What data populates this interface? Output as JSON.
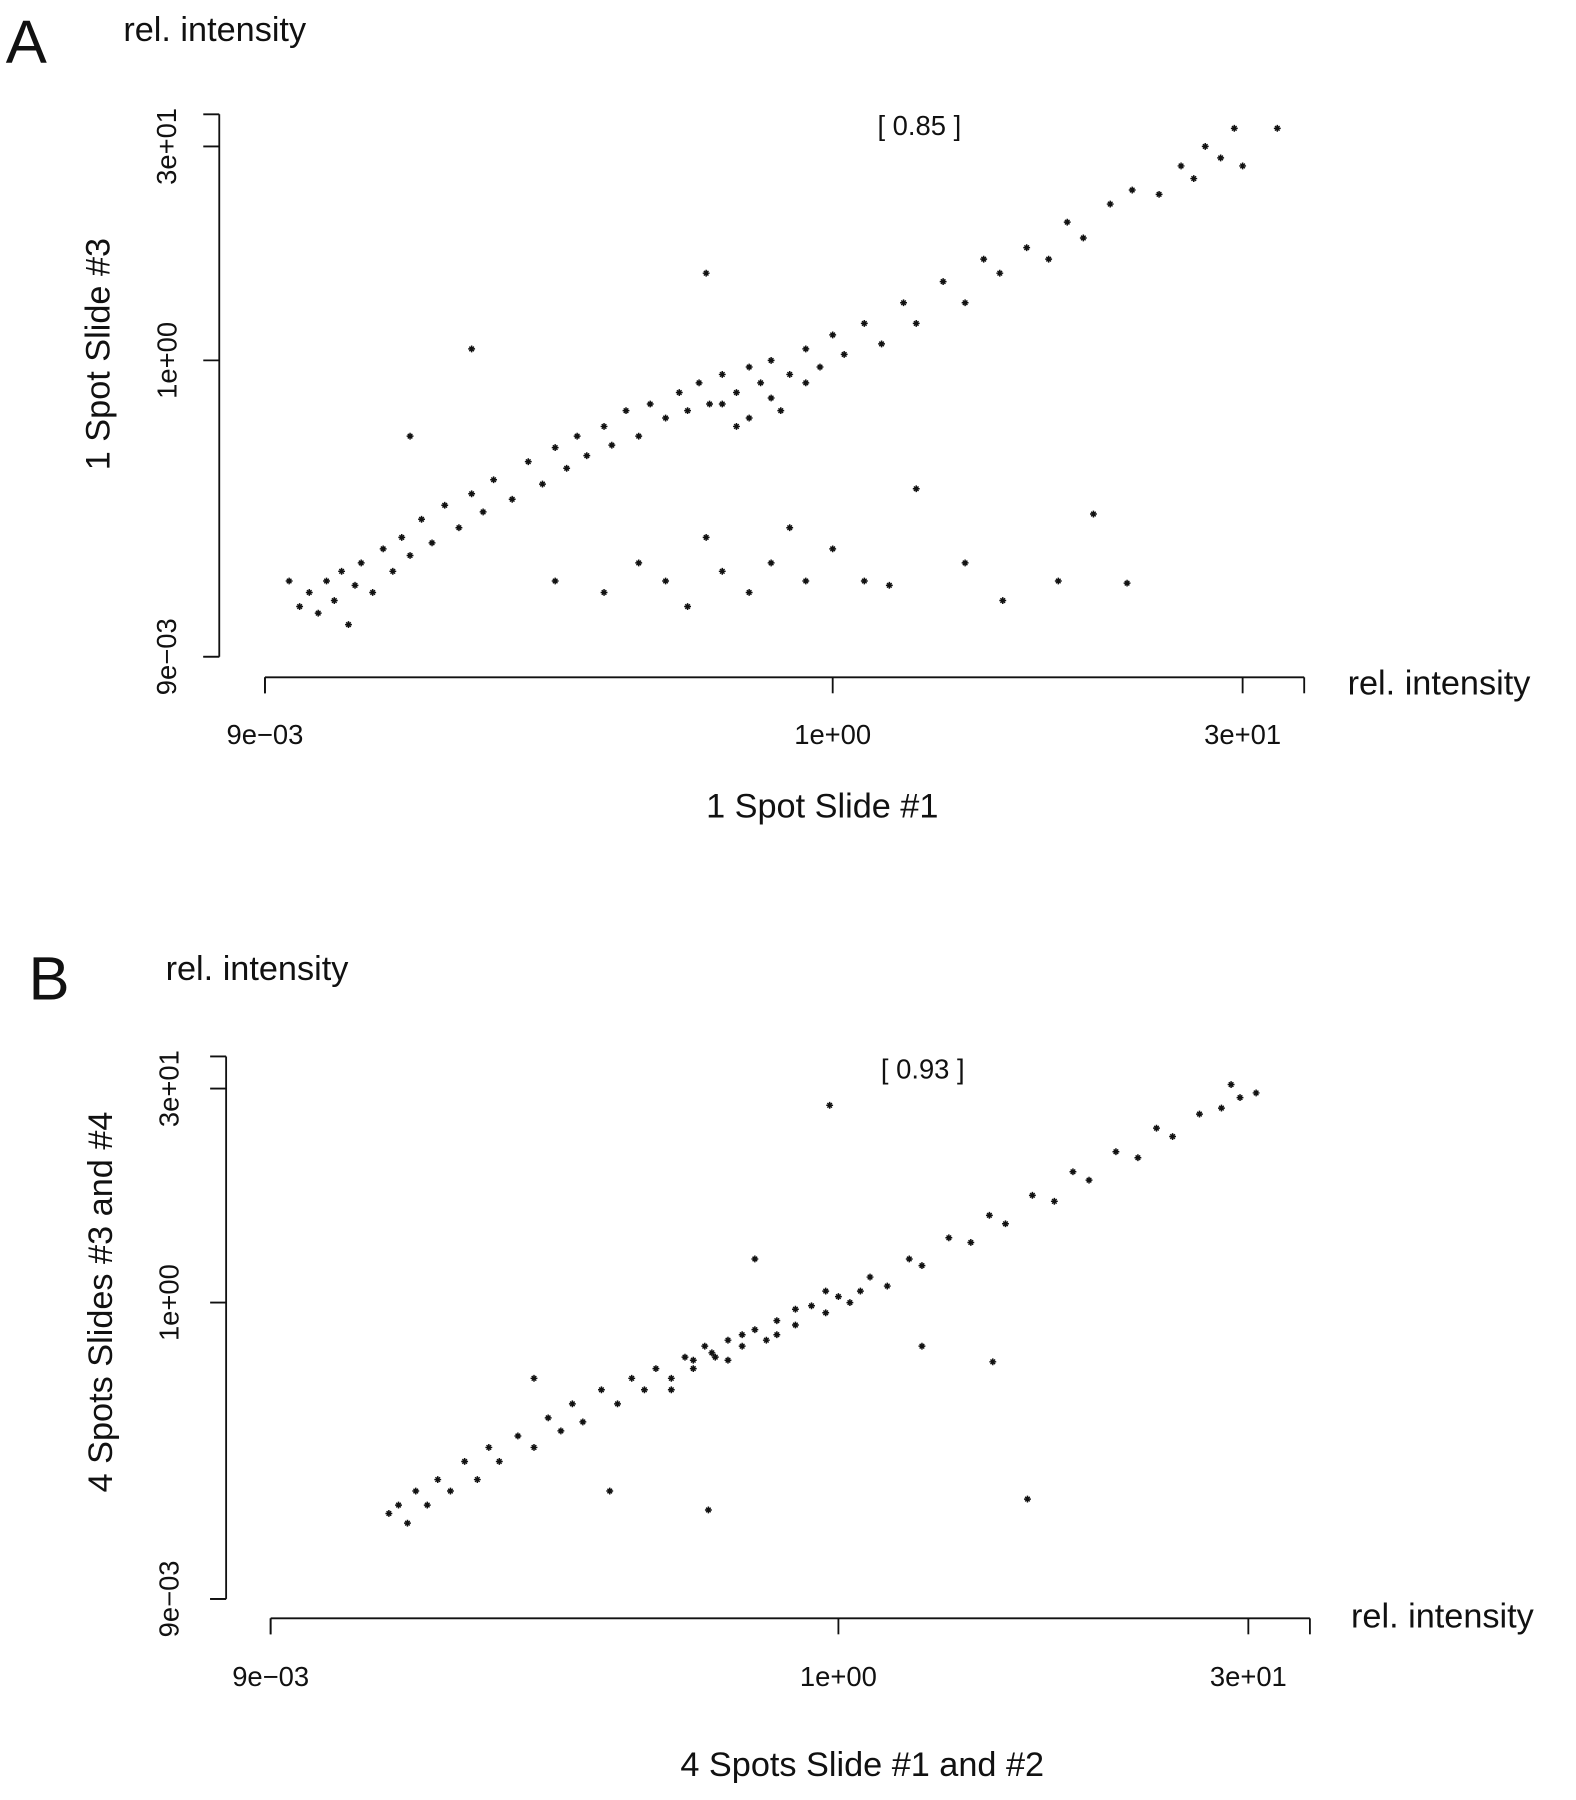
{
  "chart_data": [
    {
      "type": "scatter",
      "panel": "A",
      "x_label": "1 Spot Slide #1",
      "y_label": "1 Spot Slide #3",
      "x_axis_unit": "rel. intensity",
      "y_axis_unit": "rel. intensity",
      "annotation": "[ 0.85 ]",
      "log_scale": true,
      "color": "#111111",
      "xlim": [
        0.009,
        50
      ],
      "ylim": [
        0.009,
        50
      ],
      "xticks": [
        {
          "value": 0.009,
          "label": "9e−03"
        },
        {
          "value": 1,
          "label": "1e+00"
        },
        {
          "value": 30,
          "label": "3e+01"
        }
      ],
      "yticks": [
        {
          "value": 0.009,
          "label": "9e−03"
        },
        {
          "value": 1,
          "label": "1e+00"
        },
        {
          "value": 30,
          "label": "3e+01"
        }
      ],
      "x": [
        0.011,
        0.012,
        0.013,
        0.014,
        0.015,
        0.016,
        0.017,
        0.018,
        0.019,
        0.02,
        0.022,
        0.024,
        0.026,
        0.028,
        0.03,
        0.033,
        0.036,
        0.04,
        0.045,
        0.05,
        0.055,
        0.06,
        0.07,
        0.08,
        0.09,
        0.1,
        0.11,
        0.12,
        0.13,
        0.15,
        0.16,
        0.18,
        0.2,
        0.22,
        0.25,
        0.28,
        0.3,
        0.33,
        0.36,
        0.4,
        0.45,
        0.5,
        0.55,
        0.6,
        0.7,
        0.8,
        0.9,
        1.0,
        1.1,
        1.3,
        1.5,
        1.8,
        2,
        2.5,
        3,
        3.5,
        4,
        5,
        6,
        7,
        8,
        10,
        12,
        15,
        18,
        20,
        25,
        30,
        22,
        28,
        0.1,
        0.15,
        0.2,
        0.25,
        0.3,
        0.4,
        0.5,
        0.6,
        0.8,
        1.0,
        1.3,
        1.6,
        0.35,
        0.7,
        4.1,
        8.7,
        11.5,
        6.5,
        3,
        0.05,
        0.03,
        0.35,
        2.0,
        40,
        0.5,
        0.6,
        0.45,
        0.8,
        0.65,
        0.4
      ],
      "values": [
        0.03,
        0.02,
        0.025,
        0.018,
        0.03,
        0.022,
        0.035,
        0.015,
        0.028,
        0.04,
        0.025,
        0.05,
        0.035,
        0.06,
        0.045,
        0.08,
        0.055,
        0.1,
        0.07,
        0.12,
        0.09,
        0.15,
        0.11,
        0.2,
        0.14,
        0.25,
        0.18,
        0.3,
        0.22,
        0.35,
        0.26,
        0.45,
        0.3,
        0.5,
        0.4,
        0.6,
        0.45,
        0.7,
        0.5,
        0.8,
        0.6,
        0.9,
        0.7,
        1.0,
        0.8,
        1.2,
        0.9,
        1.5,
        1.1,
        1.8,
        1.3,
        2.5,
        1.8,
        3.5,
        2.5,
        5,
        4,
        6,
        5,
        9,
        7,
        12,
        15,
        14,
        22,
        18,
        25,
        22,
        30,
        40,
        0.03,
        0.025,
        0.04,
        0.03,
        0.02,
        0.035,
        0.025,
        0.04,
        0.03,
        0.05,
        0.03,
        0.028,
        0.06,
        0.07,
        0.022,
        0.087,
        0.029,
        0.03,
        0.04,
        1.2,
        0.3,
        4,
        0.13,
        40,
        0.4,
        0.55,
        0.35,
        0.7,
        0.45,
        0.5
      ]
    },
    {
      "type": "scatter",
      "panel": "B",
      "x_label": "4 Spots Slide #1 and #2",
      "y_label": "4 Spots Slides #3 and #4",
      "x_axis_unit": "rel. intensity",
      "y_axis_unit": "rel. intensity",
      "annotation": "[ 0.93 ]",
      "log_scale": true,
      "color": "#111111",
      "xlim": [
        0.009,
        50
      ],
      "ylim": [
        0.009,
        50
      ],
      "xticks": [
        {
          "value": 0.009,
          "label": "9e−03"
        },
        {
          "value": 1,
          "label": "1e+00"
        },
        {
          "value": 30,
          "label": "3e+01"
        }
      ],
      "yticks": [
        {
          "value": 0.009,
          "label": "9e−03"
        },
        {
          "value": 1,
          "label": "1e+00"
        },
        {
          "value": 30,
          "label": "3e+01"
        }
      ],
      "x": [
        0.024,
        0.026,
        0.028,
        0.03,
        0.033,
        0.036,
        0.04,
        0.045,
        0.05,
        0.055,
        0.06,
        0.07,
        0.08,
        0.09,
        0.1,
        0.11,
        0.12,
        0.14,
        0.16,
        0.18,
        0.2,
        0.22,
        0.25,
        0.28,
        0.3,
        0.33,
        0.36,
        0.4,
        0.45,
        0.5,
        0.55,
        0.6,
        0.7,
        0.8,
        0.9,
        1.0,
        1.1,
        1.3,
        1.5,
        1.8,
        2,
        2.5,
        3,
        3.5,
        4,
        5,
        6,
        7,
        8,
        10,
        12,
        14,
        16,
        20,
        24,
        28,
        32,
        26,
        4.8,
        3.6,
        0.34,
        0.93,
        0.15,
        0.08,
        0.5,
        2,
        0.35,
        0.45,
        0.6,
        0.7,
        0.3,
        0.25,
        0.4,
        1.2,
        0.9
      ],
      "values": [
        0.035,
        0.04,
        0.03,
        0.05,
        0.04,
        0.06,
        0.05,
        0.08,
        0.06,
        0.1,
        0.08,
        0.12,
        0.1,
        0.16,
        0.13,
        0.2,
        0.15,
        0.25,
        0.2,
        0.3,
        0.25,
        0.35,
        0.3,
        0.42,
        0.35,
        0.5,
        0.42,
        0.55,
        0.5,
        0.65,
        0.55,
        0.75,
        0.7,
        0.95,
        0.85,
        1.1,
        1.0,
        1.5,
        1.3,
        2.0,
        1.8,
        2.8,
        2.6,
        4,
        3.5,
        5.5,
        5,
        8,
        7,
        11,
        10,
        16,
        14,
        20,
        22,
        26,
        28,
        32,
        0.044,
        0.39,
        0.037,
        23,
        0.05,
        0.3,
        2,
        0.5,
        0.45,
        0.6,
        0.6,
        0.9,
        0.4,
        0.25,
        0.4,
        1.2,
        1.2
      ]
    }
  ]
}
